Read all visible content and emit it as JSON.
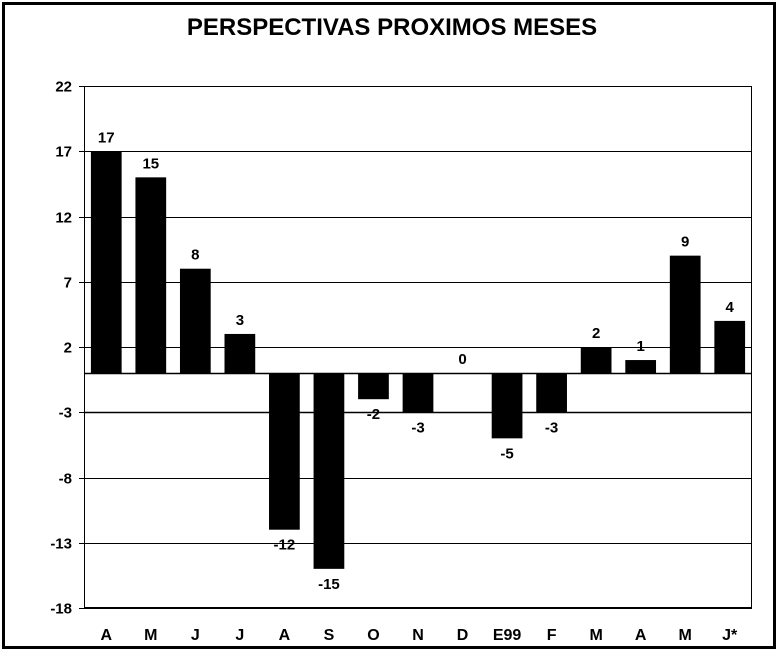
{
  "chart_data": {
    "type": "bar",
    "title": "PERSPECTIVAS PROXIMOS MESES",
    "xlabel": "",
    "ylabel": "",
    "categories": [
      "A",
      "M",
      "J",
      "J",
      "A",
      "S",
      "O",
      "N",
      "D",
      "E99",
      "F",
      "M",
      "A",
      "M",
      "J*"
    ],
    "values": [
      17,
      15,
      8,
      3,
      -12,
      -15,
      -2,
      -3,
      0,
      -5,
      -3,
      2,
      1,
      9,
      4
    ],
    "data_labels": [
      "17",
      "15",
      "8",
      "3",
      "-12",
      "-15",
      "-2",
      "-3",
      "0",
      "-5",
      "-3",
      "2",
      "1",
      "9",
      "4"
    ],
    "yticks": [
      22,
      17,
      12,
      7,
      2,
      -3,
      -8,
      -13,
      -18
    ],
    "ytick_labels": [
      "22",
      "17",
      "12",
      "7",
      "2",
      "-3",
      "-8",
      "-13",
      "-18"
    ],
    "ylim": [
      -18,
      22
    ],
    "grid": true,
    "legend": "none",
    "bar_color": "#000000",
    "background_color": "#ffffff"
  }
}
